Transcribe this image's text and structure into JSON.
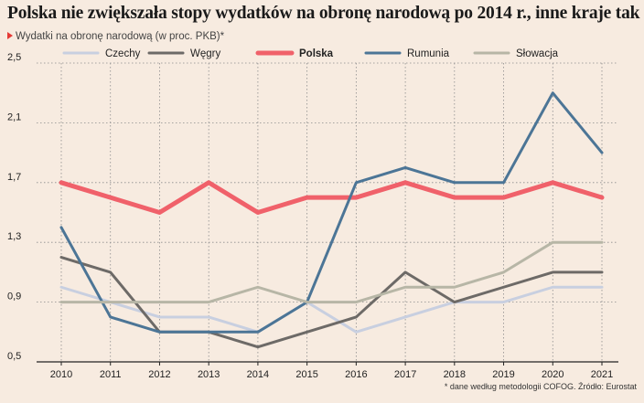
{
  "title": "Polska nie zwiększała stopy wydatków na obronę narodową po 2014 r., inne kraje tak",
  "subtitle": "Wydatki na obronę narodową (w proc. PKB)*",
  "footnote": "* dane według metodologii COFOG. Źródło: Eurostat",
  "chart_data": {
    "type": "line",
    "title": "Polska nie zwiększała stopy wydatków na obronę narodową po 2014 r., inne kraje tak",
    "subtitle": "Wydatki na obronę narodową (w proc. PKB)*",
    "x": [
      2010,
      2011,
      2012,
      2013,
      2014,
      2015,
      2016,
      2017,
      2018,
      2019,
      2020,
      2021
    ],
    "ylim": [
      0.5,
      2.5
    ],
    "yticks": [
      "2,5",
      "2,1",
      "1,7",
      "1,3",
      "0,9",
      "0,5"
    ],
    "ytick_values": [
      2.5,
      2.1,
      1.7,
      1.3,
      0.9,
      0.5
    ],
    "grid": "vertical dotted",
    "legend": "top",
    "series": [
      {
        "name": "Czechy",
        "color": "#c8cfe0",
        "bold": false,
        "values": [
          1.0,
          0.9,
          0.8,
          0.8,
          0.7,
          0.9,
          0.7,
          0.8,
          0.9,
          0.9,
          1.0,
          1.0
        ]
      },
      {
        "name": "Węgry",
        "color": "#6d6a67",
        "bold": false,
        "values": [
          1.2,
          1.1,
          0.7,
          0.7,
          0.6,
          0.7,
          0.8,
          1.1,
          0.9,
          1.0,
          1.1,
          1.1
        ]
      },
      {
        "name": "Polska",
        "color": "#f0616a",
        "bold": true,
        "values": [
          1.7,
          1.6,
          1.5,
          1.7,
          1.5,
          1.6,
          1.6,
          1.7,
          1.6,
          1.6,
          1.7,
          1.6
        ]
      },
      {
        "name": "Rumunia",
        "color": "#4c7596",
        "bold": false,
        "values": [
          1.4,
          0.8,
          0.7,
          0.7,
          0.7,
          0.9,
          1.7,
          1.8,
          1.7,
          1.7,
          2.3,
          1.9
        ]
      },
      {
        "name": "Słowacja",
        "color": "#b7b6a6",
        "bold": false,
        "values": [
          0.9,
          0.9,
          0.9,
          0.9,
          1.0,
          0.9,
          0.9,
          1.0,
          1.0,
          1.1,
          1.3,
          1.3
        ]
      }
    ]
  }
}
